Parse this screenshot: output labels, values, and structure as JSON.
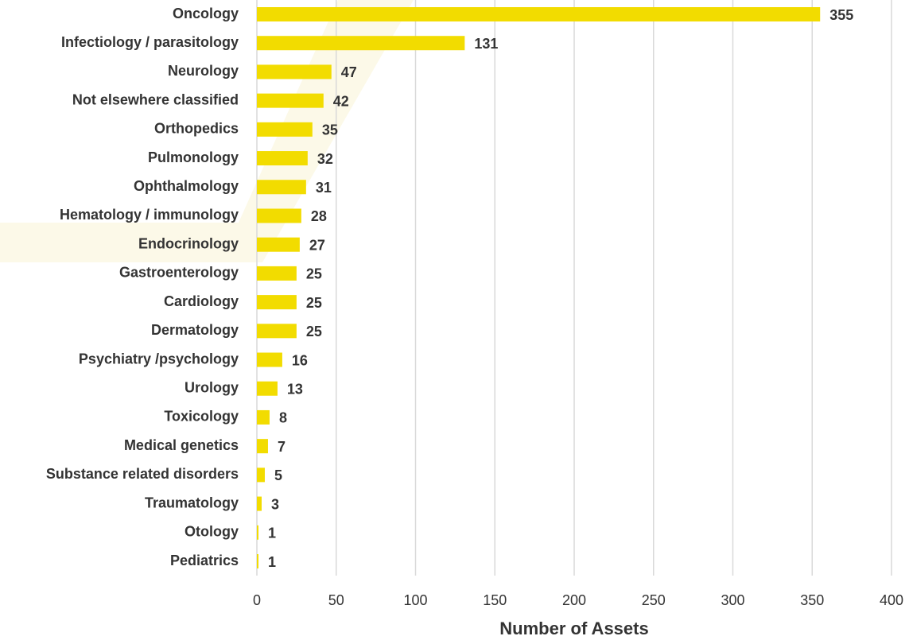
{
  "chart_data": {
    "type": "bar",
    "orientation": "horizontal",
    "categories": [
      "Oncology",
      "Infectiology / parasitology",
      "Neurology",
      "Not elsewhere classified",
      "Orthopedics",
      "Pulmonology",
      "Ophthalmology",
      "Hematology / immunology",
      "Endocrinology",
      "Gastroenterology",
      "Cardiology",
      "Dermatology",
      "Psychiatry /psychology",
      "Urology",
      "Toxicology",
      "Medical genetics",
      "Substance related disorders",
      "Traumatology",
      "Otology",
      "Pediatrics"
    ],
    "values": [
      355,
      131,
      47,
      42,
      35,
      32,
      31,
      28,
      27,
      25,
      25,
      25,
      16,
      13,
      8,
      7,
      5,
      3,
      1,
      1
    ],
    "color": "#f2dc00",
    "xlabel": "Number of Assets",
    "xlim": [
      0,
      400
    ],
    "xticks": [
      0,
      50,
      100,
      150,
      200,
      250,
      300,
      350,
      400
    ],
    "grid": true
  }
}
